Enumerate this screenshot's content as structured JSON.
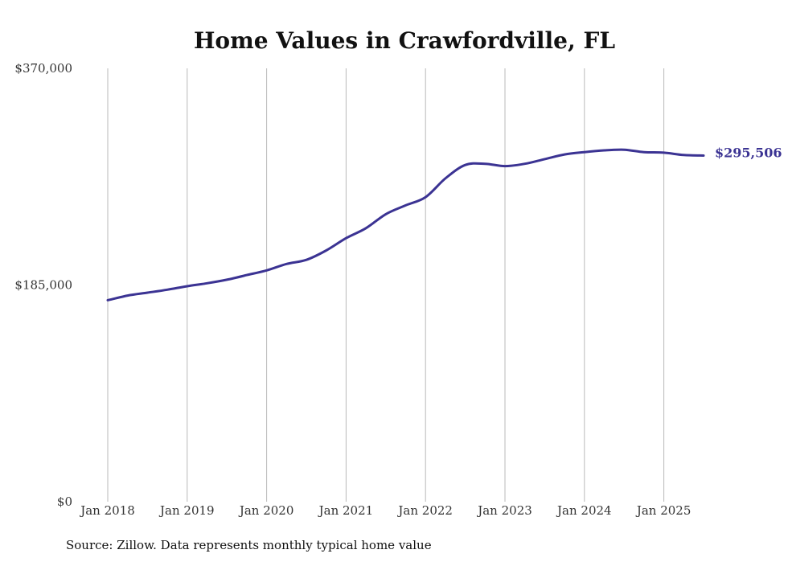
{
  "chart_data": {
    "type": "line",
    "title": "Home Values in Crawfordville, FL",
    "xlabel": "",
    "ylabel": "",
    "ylim": [
      0,
      370000
    ],
    "yticks": [
      {
        "value": 0,
        "label": "$0"
      },
      {
        "value": 185000,
        "label": "$185,000"
      },
      {
        "value": 370000,
        "label": "$370,000"
      }
    ],
    "xticks": [
      {
        "value": "2018-01",
        "label": "Jan 2018"
      },
      {
        "value": "2019-01",
        "label": "Jan 2019"
      },
      {
        "value": "2020-01",
        "label": "Jan 2020"
      },
      {
        "value": "2021-01",
        "label": "Jan 2021"
      },
      {
        "value": "2022-01",
        "label": "Jan 2022"
      },
      {
        "value": "2023-01",
        "label": "Jan 2023"
      },
      {
        "value": "2024-01",
        "label": "Jan 2024"
      },
      {
        "value": "2025-01",
        "label": "Jan 2025"
      }
    ],
    "grid": "vertical",
    "legend": "none",
    "colors": {
      "line": "#3b3393",
      "grid": "#b9b9b9"
    },
    "series": [
      {
        "end_label": "$295,506",
        "points": [
          {
            "x": "2018-01",
            "y": 172000
          },
          {
            "x": "2018-04",
            "y": 176000
          },
          {
            "x": "2018-07",
            "y": 178500
          },
          {
            "x": "2018-10",
            "y": 181000
          },
          {
            "x": "2019-01",
            "y": 184000
          },
          {
            "x": "2019-04",
            "y": 186500
          },
          {
            "x": "2019-07",
            "y": 189500
          },
          {
            "x": "2019-10",
            "y": 193500
          },
          {
            "x": "2020-01",
            "y": 197500
          },
          {
            "x": "2020-04",
            "y": 203000
          },
          {
            "x": "2020-07",
            "y": 206500
          },
          {
            "x": "2020-10",
            "y": 214500
          },
          {
            "x": "2021-01",
            "y": 225000
          },
          {
            "x": "2021-04",
            "y": 233500
          },
          {
            "x": "2021-07",
            "y": 245500
          },
          {
            "x": "2021-10",
            "y": 253000
          },
          {
            "x": "2022-01",
            "y": 260000
          },
          {
            "x": "2022-04",
            "y": 276000
          },
          {
            "x": "2022-07",
            "y": 287500
          },
          {
            "x": "2022-10",
            "y": 288500
          },
          {
            "x": "2023-01",
            "y": 286500
          },
          {
            "x": "2023-04",
            "y": 288500
          },
          {
            "x": "2023-07",
            "y": 292500
          },
          {
            "x": "2023-10",
            "y": 296500
          },
          {
            "x": "2024-01",
            "y": 298500
          },
          {
            "x": "2024-04",
            "y": 300000
          },
          {
            "x": "2024-07",
            "y": 300500
          },
          {
            "x": "2024-10",
            "y": 298500
          },
          {
            "x": "2025-01",
            "y": 298000
          },
          {
            "x": "2025-04",
            "y": 296000
          },
          {
            "x": "2025-07",
            "y": 295506
          }
        ]
      }
    ],
    "source": "Source: Zillow. Data represents monthly typical home value"
  }
}
